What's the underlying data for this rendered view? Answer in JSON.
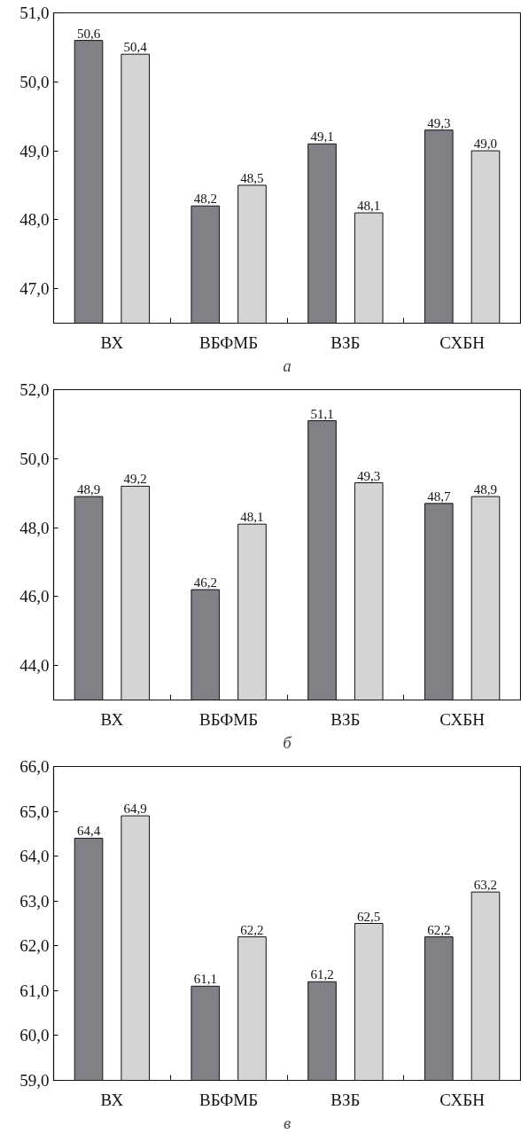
{
  "chart_data": [
    {
      "type": "bar",
      "xlabel": "а",
      "categories": [
        "ВХ",
        "ВБФМБ",
        "ВЗБ",
        "СХБН"
      ],
      "grid": false,
      "series": [
        {
          "color": "#808186",
          "values": [
            50.6,
            48.2,
            49.1,
            49.3
          ],
          "value_labels": [
            "50,6",
            "48,2",
            "49,1",
            "49,3"
          ]
        },
        {
          "color": "#d3d4d6",
          "values": [
            50.4,
            48.5,
            48.1,
            49.0
          ],
          "value_labels": [
            "50,4",
            "48,5",
            "48,1",
            "49,0"
          ]
        }
      ],
      "ylim": [
        46.5,
        51.0
      ],
      "yticks": [
        {
          "value": 47,
          "label": "47,0"
        },
        {
          "value": 48,
          "label": "48,0"
        },
        {
          "value": 49,
          "label": "49,0"
        },
        {
          "value": 50,
          "label": "50,0"
        },
        {
          "value": 51,
          "label": "51,0"
        }
      ]
    },
    {
      "type": "bar",
      "xlabel": "б",
      "categories": [
        "ВХ",
        "ВБФМБ",
        "ВЗБ",
        "СХБН"
      ],
      "grid": false,
      "series": [
        {
          "color": "#808186",
          "values": [
            48.9,
            46.2,
            51.1,
            48.7
          ],
          "value_labels": [
            "48,9",
            "46,2",
            "51,1",
            "48,7"
          ]
        },
        {
          "color": "#d3d4d6",
          "values": [
            49.2,
            48.1,
            49.3,
            48.9
          ],
          "value_labels": [
            "49,2",
            "48,1",
            "49,3",
            "48,9"
          ]
        }
      ],
      "ylim": [
        43.0,
        52.0
      ],
      "yticks": [
        {
          "value": 44,
          "label": "44,0"
        },
        {
          "value": 46,
          "label": "46,0"
        },
        {
          "value": 48,
          "label": "48,0"
        },
        {
          "value": 50,
          "label": "50,0"
        },
        {
          "value": 52,
          "label": "52,0"
        }
      ]
    },
    {
      "type": "bar",
      "xlabel": "в",
      "categories": [
        "ВХ",
        "ВБФМБ",
        "ВЗБ",
        "СХБН"
      ],
      "grid": false,
      "series": [
        {
          "color": "#808186",
          "values": [
            64.4,
            61.1,
            61.2,
            62.2
          ],
          "value_labels": [
            "64,4",
            "61,1",
            "61,2",
            "62,2"
          ]
        },
        {
          "color": "#d3d4d6",
          "values": [
            64.9,
            62.2,
            62.5,
            63.2
          ],
          "value_labels": [
            "64,9",
            "62,2",
            "62,5",
            "63,2"
          ]
        }
      ],
      "ylim": [
        59.0,
        66.0
      ],
      "yticks": [
        {
          "value": 59,
          "label": "59,0"
        },
        {
          "value": 60,
          "label": "60,0"
        },
        {
          "value": 61,
          "label": "61,0"
        },
        {
          "value": 62,
          "label": "62,0"
        },
        {
          "value": 63,
          "label": "63,0"
        },
        {
          "value": 64,
          "label": "64,0"
        },
        {
          "value": 65,
          "label": "65,0"
        },
        {
          "value": 66,
          "label": "66,0"
        }
      ]
    }
  ]
}
